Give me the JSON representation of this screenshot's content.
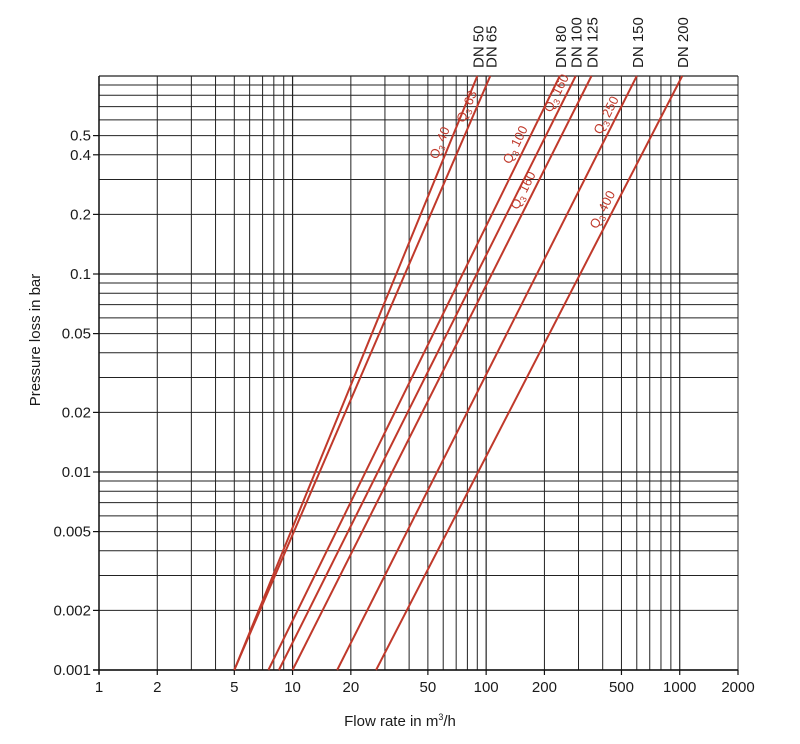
{
  "chart_data": {
    "type": "line",
    "title": "",
    "xlabel": "Flow rate in m",
    "xlabel_sup": "3",
    "xlabel_tail": "/h",
    "ylabel": "Pressure loss in bar",
    "xscale": "log",
    "yscale": "log",
    "xlim": [
      1,
      2000
    ],
    "ylim": [
      0.001,
      1
    ],
    "grid": true,
    "line_color": "#c0392b",
    "x_ticks": [
      {
        "value": 1,
        "label": "1"
      },
      {
        "value": 2,
        "label": "2"
      },
      {
        "value": 5,
        "label": "5"
      },
      {
        "value": 10,
        "label": "10"
      },
      {
        "value": 20,
        "label": "20"
      },
      {
        "value": 50,
        "label": "50"
      },
      {
        "value": 100,
        "label": "100"
      },
      {
        "value": 200,
        "label": "200"
      },
      {
        "value": 500,
        "label": "500"
      },
      {
        "value": 1000,
        "label": "1000"
      },
      {
        "value": 2000,
        "label": "2000"
      }
    ],
    "y_ticks": [
      {
        "value": 0.001,
        "label": "0.001"
      },
      {
        "value": 0.002,
        "label": "0.002"
      },
      {
        "value": 0.005,
        "label": "0.005"
      },
      {
        "value": 0.01,
        "label": "0.01"
      },
      {
        "value": 0.02,
        "label": "0.02"
      },
      {
        "value": 0.05,
        "label": "0.05"
      },
      {
        "value": 0.1,
        "label": "0.1"
      },
      {
        "value": 0.2,
        "label": "0.2"
      },
      {
        "value": 0.4,
        "label": "0.4"
      },
      {
        "value": 0.5,
        "label": "0.5"
      }
    ],
    "series": [
      {
        "name": "DN 50",
        "curve_label": "Q",
        "curve_sub": "3",
        "curve_value": "40",
        "x": [
          5,
          90
        ],
        "y": [
          0.001,
          1
        ]
      },
      {
        "name": "DN 65",
        "curve_label": "Q",
        "curve_sub": "3",
        "curve_value": "63",
        "x": [
          5,
          105
        ],
        "y": [
          0.001,
          1
        ]
      },
      {
        "name": "DN 80",
        "curve_label": "Q",
        "curve_sub": "3",
        "curve_value": "100",
        "x": [
          7.5,
          240
        ],
        "y": [
          0.001,
          1
        ]
      },
      {
        "name": "DN 100",
        "curve_label": "Q",
        "curve_sub": "3",
        "curve_value": "160",
        "x": [
          8.5,
          290
        ],
        "y": [
          0.001,
          1
        ]
      },
      {
        "name": "DN 125",
        "curve_label": "Q",
        "curve_sub": "3",
        "curve_value": "160",
        "x": [
          10,
          350
        ],
        "y": [
          0.001,
          1
        ]
      },
      {
        "name": "DN 150",
        "curve_label": "Q",
        "curve_sub": "3",
        "curve_value": "250",
        "x": [
          17,
          600
        ],
        "y": [
          0.001,
          1
        ]
      },
      {
        "name": "DN 200",
        "curve_label": "Q",
        "curve_sub": "3",
        "curve_value": "400",
        "x": [
          27,
          1030
        ],
        "y": [
          0.001,
          1
        ]
      }
    ]
  }
}
